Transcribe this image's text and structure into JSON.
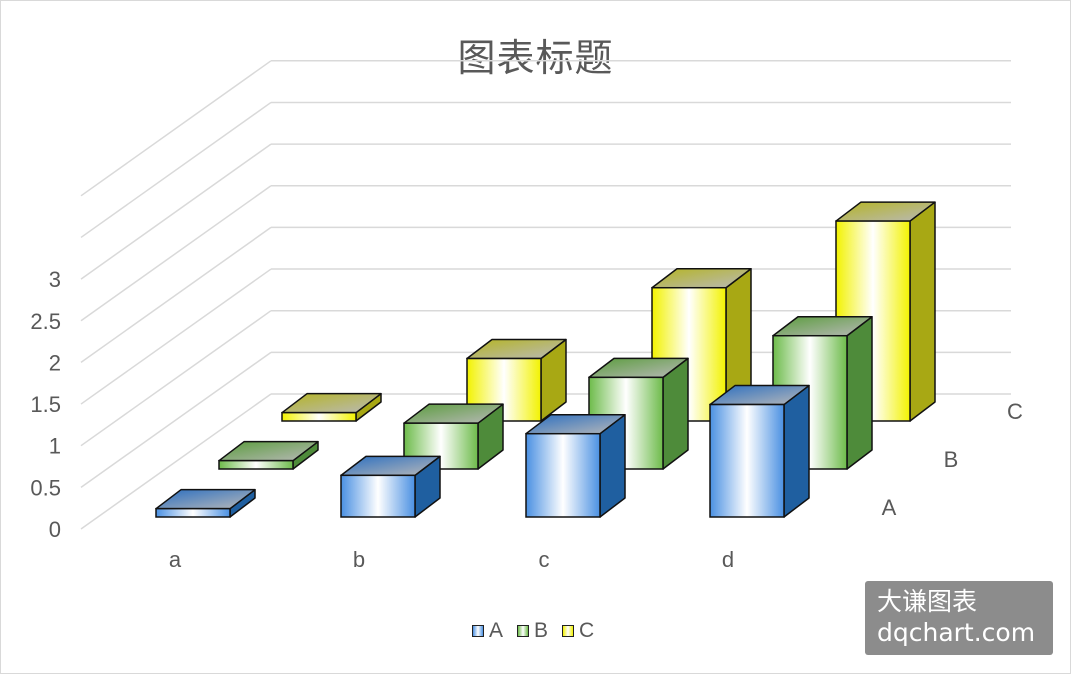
{
  "chart_data": {
    "type": "bar",
    "subtype": "3d-column",
    "title": "图表标题",
    "categories": [
      "a",
      "b",
      "c",
      "d"
    ],
    "series": [
      {
        "name": "A",
        "values": [
          0.1,
          0.5,
          1.0,
          1.35
        ],
        "color": "#1f5fa0"
      },
      {
        "name": "B",
        "values": [
          0.1,
          0.55,
          1.1,
          1.6
        ],
        "color": "#4e8b3a"
      },
      {
        "name": "C",
        "values": [
          0.1,
          0.75,
          1.6,
          2.4
        ],
        "color": "#a8a814"
      }
    ],
    "y_ticks": [
      "0",
      "0.5",
      "1",
      "1.5",
      "2",
      "2.5",
      "3"
    ],
    "ylim": [
      0,
      3
    ],
    "grid": true,
    "legend_position": "bottom"
  },
  "legend": {
    "items": [
      {
        "label": "A",
        "color": "#7fb4ea"
      },
      {
        "label": "B",
        "color": "#9ccf7b"
      },
      {
        "label": "C",
        "color": "#f5f564"
      }
    ]
  },
  "watermark": {
    "line1": "大谦图表",
    "line2": "dqchart.com"
  }
}
